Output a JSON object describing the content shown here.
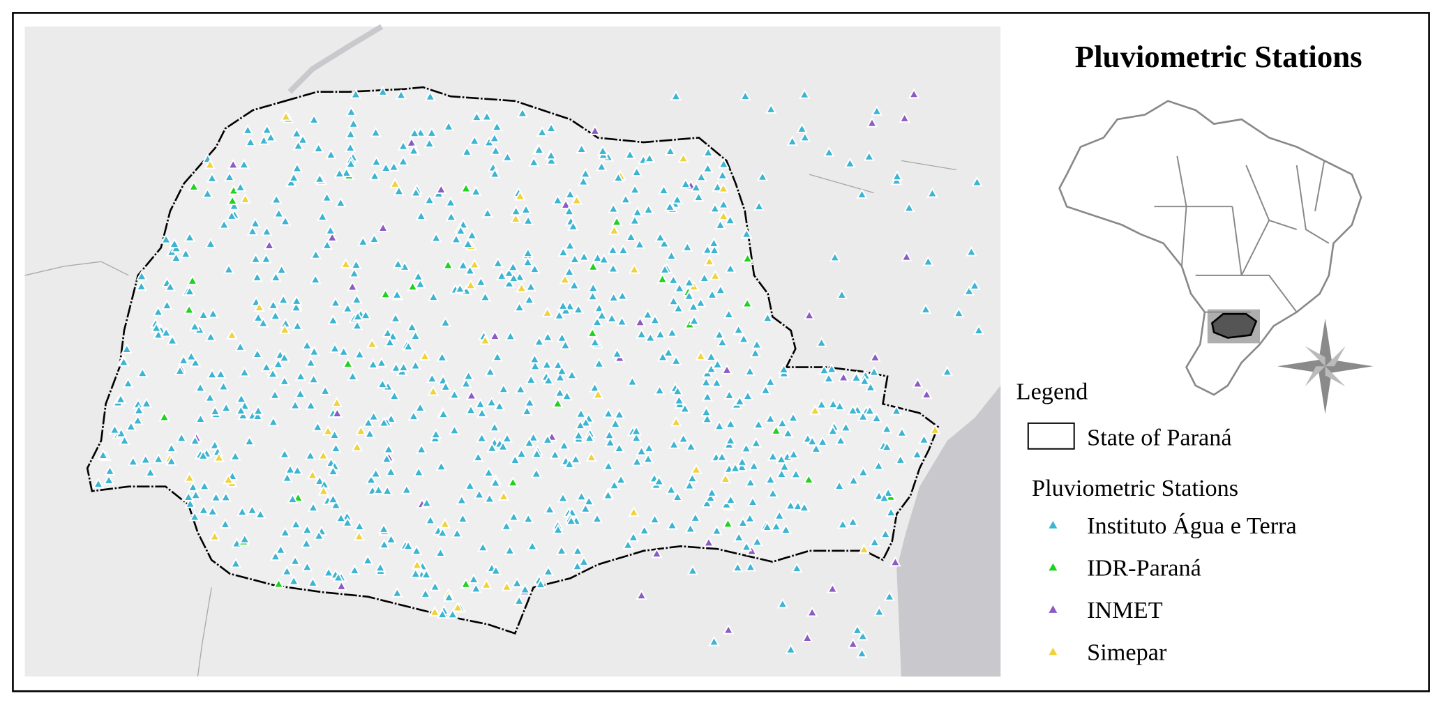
{
  "title": "Pluviometric Stations",
  "legend": {
    "title": "Legend",
    "boundary": "State of Paraná",
    "stations_title": "Pluviometric Stations",
    "items": [
      {
        "label": "Instituto Água e Terra",
        "color": "#3cb4d2"
      },
      {
        "label": "IDR-Paraná",
        "color": "#1ed21e"
      },
      {
        "label": "INMET",
        "color": "#8c5ac3"
      },
      {
        "label": "Simepar",
        "color": "#f0d23c"
      }
    ]
  }
}
